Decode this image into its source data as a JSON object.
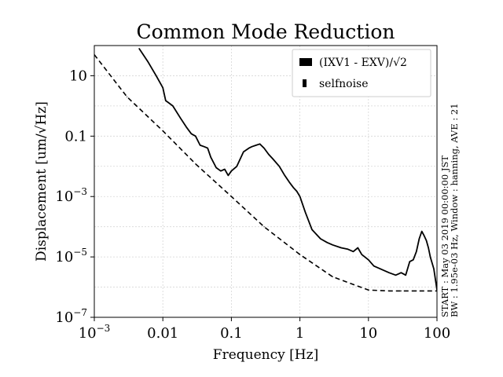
{
  "chart_data": {
    "type": "line",
    "title": "Common Mode Reduction",
    "xlabel": "Frequency [Hz]",
    "ylabel": "Displacement [um/√Hz]",
    "xscale": "log",
    "yscale": "log",
    "xlim": [
      0.001,
      100
    ],
    "ylim": [
      1e-07,
      100
    ],
    "grid": true,
    "legend_position": "top-right",
    "x_ticks": [
      {
        "value": 0.001,
        "label": "10",
        "exp": "−3"
      },
      {
        "value": 0.01,
        "label": "0.01",
        "exp": ""
      },
      {
        "value": 0.1,
        "label": "0.1",
        "exp": ""
      },
      {
        "value": 1,
        "label": "1",
        "exp": ""
      },
      {
        "value": 10,
        "label": "10",
        "exp": ""
      },
      {
        "value": 100,
        "label": "100",
        "exp": ""
      }
    ],
    "y_ticks": [
      {
        "value": 1e-07,
        "label": "10",
        "exp": "−7"
      },
      {
        "value": 1e-05,
        "label": "10",
        "exp": "−5"
      },
      {
        "value": 0.001,
        "label": "10",
        "exp": "−3"
      },
      {
        "value": 0.1,
        "label": "0.1",
        "exp": ""
      },
      {
        "value": 10,
        "label": "10",
        "exp": ""
      }
    ],
    "series": [
      {
        "name": "(IXV1 - EXV)/√2",
        "style": "solid",
        "x": [
          0.0045,
          0.006,
          0.008,
          0.01,
          0.011,
          0.012,
          0.014,
          0.018,
          0.022,
          0.026,
          0.03,
          0.035,
          0.04,
          0.045,
          0.05,
          0.06,
          0.07,
          0.08,
          0.09,
          0.1,
          0.12,
          0.15,
          0.18,
          0.2,
          0.23,
          0.26,
          0.3,
          0.35,
          0.4,
          0.5,
          0.6,
          0.7,
          0.8,
          0.9,
          1.0,
          1.2,
          1.5,
          2,
          2.5,
          3,
          4,
          5,
          6,
          7,
          8,
          10,
          12,
          15,
          20,
          25,
          30,
          35,
          40,
          45,
          50,
          55,
          60,
          65,
          70,
          75,
          80,
          90,
          100
        ],
        "y": [
          80,
          30,
          10,
          4,
          1.5,
          1.3,
          1,
          0.4,
          0.2,
          0.12,
          0.1,
          0.05,
          0.045,
          0.04,
          0.02,
          0.009,
          0.007,
          0.008,
          0.005,
          0.007,
          0.01,
          0.03,
          0.04,
          0.045,
          0.05,
          0.055,
          0.04,
          0.025,
          0.018,
          0.01,
          0.005,
          0.003,
          0.002,
          0.0015,
          0.001,
          0.0003,
          8e-05,
          4e-05,
          3e-05,
          2.5e-05,
          2e-05,
          1.8e-05,
          1.5e-05,
          2e-05,
          1.2e-05,
          8e-06,
          5e-06,
          4e-06,
          3e-06,
          2.5e-06,
          3e-06,
          2.5e-06,
          7e-06,
          8e-06,
          1.5e-05,
          4e-05,
          7e-05,
          5e-05,
          3.5e-05,
          2e-05,
          1e-05,
          4e-06,
          8e-07
        ]
      },
      {
        "name": "selfnoise",
        "style": "dashed",
        "x": [
          0.001,
          0.003,
          0.01,
          0.03,
          0.1,
          0.3,
          1,
          3,
          10,
          20,
          30,
          50,
          100
        ],
        "y": [
          50,
          2,
          0.15,
          0.012,
          0.001,
          0.0001,
          1.2e-05,
          2.2e-06,
          8e-07,
          7.5e-07,
          7.5e-07,
          7.5e-07,
          7.5e-07
        ]
      }
    ],
    "side_annotations": [
      "START : May 03 2019 00:00:00 JST",
      "BW : 1.95e-03 Hz, Window : hanning, AVE : 21"
    ]
  }
}
